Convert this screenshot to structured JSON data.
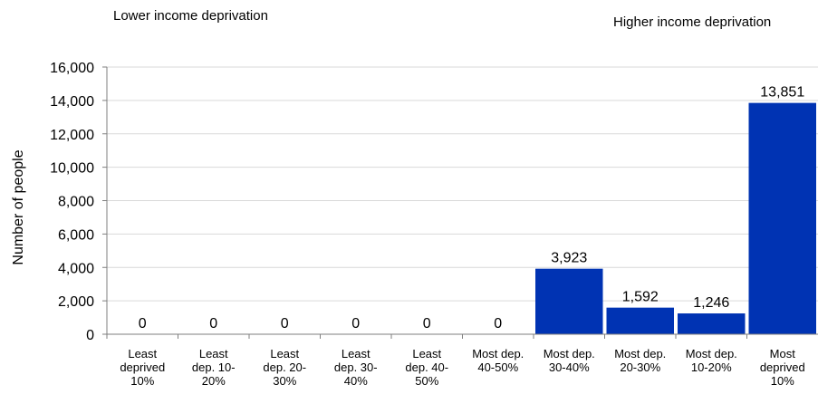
{
  "annotations": {
    "left": "Lower income deprivation",
    "right": "Higher income deprivation"
  },
  "chart_data": {
    "type": "bar",
    "title": "",
    "xlabel": "",
    "ylabel": "Number of people",
    "ylim": [
      0,
      16000
    ],
    "yticks": [
      "0",
      "2,000",
      "4,000",
      "6,000",
      "8,000",
      "10,000",
      "12,000",
      "14,000",
      "16,000"
    ],
    "grid": true,
    "bar_color": "#0033b3",
    "categories": [
      [
        "Least",
        "deprived",
        "10%"
      ],
      [
        "Least",
        "dep. 10-",
        "20%"
      ],
      [
        "Least",
        "dep. 20-",
        "30%"
      ],
      [
        "Least",
        "dep. 30-",
        "40%"
      ],
      [
        "Least",
        "dep. 40-",
        "50%"
      ],
      [
        "Most dep.",
        "40-50%"
      ],
      [
        "Most dep.",
        "30-40%"
      ],
      [
        "Most dep.",
        "20-30%"
      ],
      [
        "Most dep.",
        "10-20%"
      ],
      [
        "Most",
        "deprived",
        "10%"
      ]
    ],
    "values": [
      0,
      0,
      0,
      0,
      0,
      0,
      3923,
      1592,
      1246,
      13851
    ],
    "value_labels": [
      "0",
      "0",
      "0",
      "0",
      "0",
      "0",
      "3,923",
      "1,592",
      "1,246",
      "13,851"
    ]
  }
}
